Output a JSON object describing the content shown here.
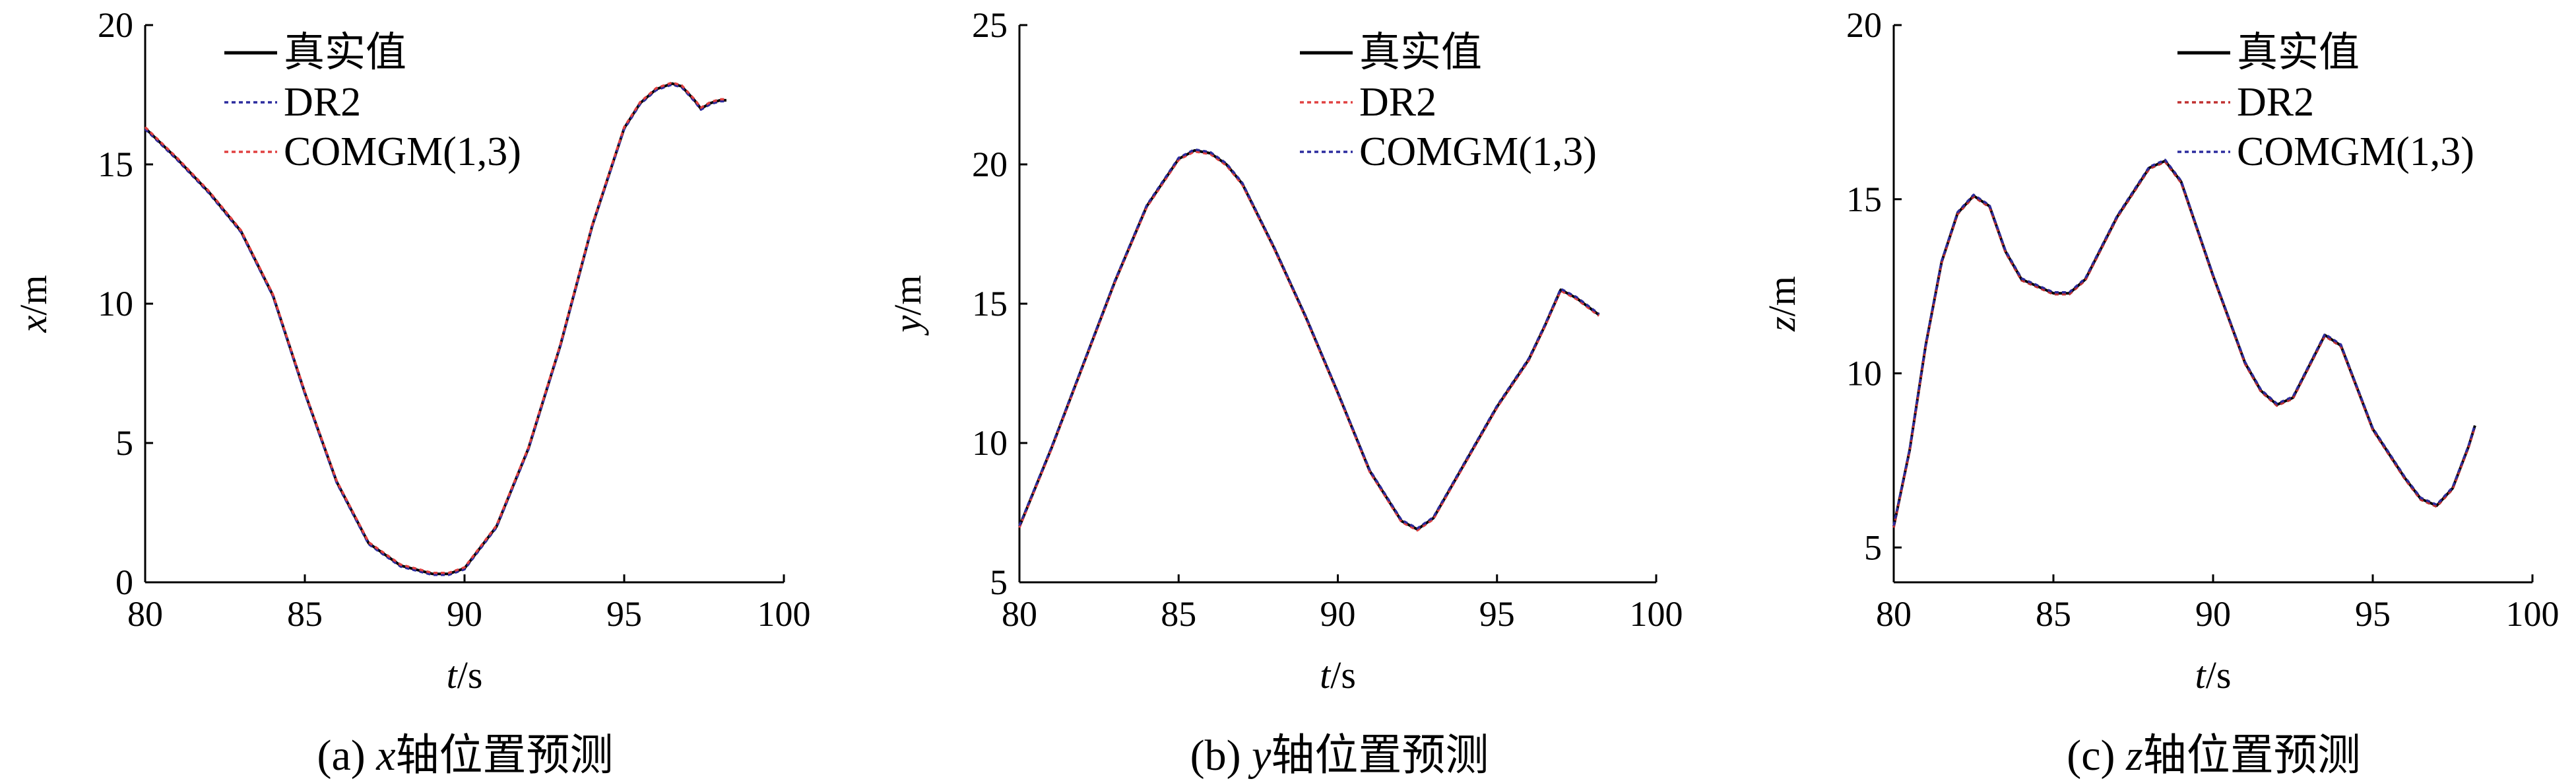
{
  "chart_data": [
    {
      "type": "line",
      "id": "a",
      "caption": "(a) x轴位置预测",
      "caption_prefix": "(a) ",
      "caption_var": "x",
      "caption_suffix": "轴位置预测",
      "xlabel_var": "t",
      "xlabel_unit": "/s",
      "ylabel_var": "x",
      "ylabel_unit": "/m",
      "xlim": [
        80,
        100
      ],
      "ylim": [
        0,
        20
      ],
      "xticks": [
        80,
        85,
        90,
        95,
        100
      ],
      "yticks": [
        0,
        5,
        10,
        15,
        20
      ],
      "legend_position": "top-center",
      "series": [
        {
          "name": "真实值",
          "color": "#000000",
          "style": "solid"
        },
        {
          "name": "DR2",
          "color": "#2b2b9e",
          "style": "dotted"
        },
        {
          "name": "COMGM(1,3)",
          "color": "#e04040",
          "style": "dotted"
        }
      ],
      "x": [
        80.0,
        81.0,
        82.0,
        83.0,
        84.0,
        85.0,
        86.0,
        87.0,
        88.0,
        89.0,
        89.5,
        90.0,
        91.0,
        92.0,
        93.0,
        94.0,
        95.0,
        95.5,
        96.0,
        96.5,
        96.8,
        97.2,
        97.4,
        97.7,
        98.0,
        98.2
      ],
      "values": [
        16.3,
        15.2,
        14.0,
        12.6,
        10.3,
        6.8,
        3.6,
        1.4,
        0.6,
        0.3,
        0.3,
        0.5,
        2.0,
        4.8,
        8.5,
        12.8,
        16.3,
        17.2,
        17.7,
        17.9,
        17.8,
        17.3,
        17.0,
        17.2,
        17.3,
        17.3
      ]
    },
    {
      "type": "line",
      "id": "b",
      "caption": "(b) y轴位置预测",
      "caption_prefix": "(b) ",
      "caption_var": "y",
      "caption_suffix": "轴位置预测",
      "xlabel_var": "t",
      "xlabel_unit": "/s",
      "ylabel_var": "y",
      "ylabel_unit": "/m",
      "xlim": [
        80,
        100
      ],
      "ylim": [
        5,
        25
      ],
      "xticks": [
        80,
        85,
        90,
        95,
        100
      ],
      "yticks": [
        5,
        10,
        15,
        20,
        25
      ],
      "legend_position": "top-center",
      "series": [
        {
          "name": "真实值",
          "color": "#000000",
          "style": "solid"
        },
        {
          "name": "DR2",
          "color": "#e04040",
          "style": "dotted"
        },
        {
          "name": "COMGM(1,3)",
          "color": "#2b2b9e",
          "style": "dotted"
        }
      ],
      "x": [
        80.0,
        81.0,
        82.0,
        83.0,
        84.0,
        85.0,
        85.5,
        86.0,
        86.5,
        87.0,
        88.0,
        89.0,
        90.0,
        91.0,
        92.0,
        92.5,
        93.0,
        94.0,
        95.0,
        96.0,
        96.5,
        97.0,
        97.5,
        98.2
      ],
      "values": [
        7.0,
        9.8,
        12.8,
        15.8,
        18.5,
        20.2,
        20.5,
        20.4,
        20.0,
        19.3,
        17.0,
        14.5,
        11.8,
        9.0,
        7.2,
        6.9,
        7.3,
        9.3,
        11.3,
        13.0,
        14.2,
        15.5,
        15.2,
        14.6
      ]
    },
    {
      "type": "line",
      "id": "c",
      "caption": "(c) z轴位置预测",
      "caption_prefix": "(c) ",
      "caption_var": "z",
      "caption_suffix": "轴位置预测",
      "xlabel_var": "t",
      "xlabel_unit": "/s",
      "ylabel_var": "z",
      "ylabel_unit": "/m",
      "xlim": [
        80,
        100
      ],
      "ylim": [
        4,
        20
      ],
      "xticks": [
        80,
        85,
        90,
        95,
        100
      ],
      "yticks": [
        5,
        10,
        15,
        20
      ],
      "legend_position": "top-center",
      "series": [
        {
          "name": "真实值",
          "color": "#000000",
          "style": "solid"
        },
        {
          "name": "DR2",
          "color": "#c03030",
          "style": "dotted"
        },
        {
          "name": "COMGM(1,3)",
          "color": "#2b2b9e",
          "style": "dotted"
        }
      ],
      "x": [
        80.0,
        80.5,
        81.0,
        81.5,
        82.0,
        82.5,
        83.0,
        83.5,
        84.0,
        85.0,
        85.5,
        86.0,
        87.0,
        88.0,
        88.5,
        89.0,
        90.0,
        91.0,
        91.5,
        92.0,
        92.5,
        93.0,
        93.5,
        94.0,
        95.0,
        96.0,
        96.5,
        97.0,
        97.5,
        98.0,
        98.2
      ],
      "values": [
        5.6,
        7.8,
        10.8,
        13.2,
        14.6,
        15.1,
        14.8,
        13.5,
        12.7,
        12.3,
        12.3,
        12.7,
        14.5,
        15.9,
        16.1,
        15.5,
        12.8,
        10.3,
        9.5,
        9.1,
        9.3,
        10.2,
        11.1,
        10.8,
        8.4,
        7.0,
        6.4,
        6.2,
        6.7,
        7.9,
        8.5
      ]
    }
  ]
}
